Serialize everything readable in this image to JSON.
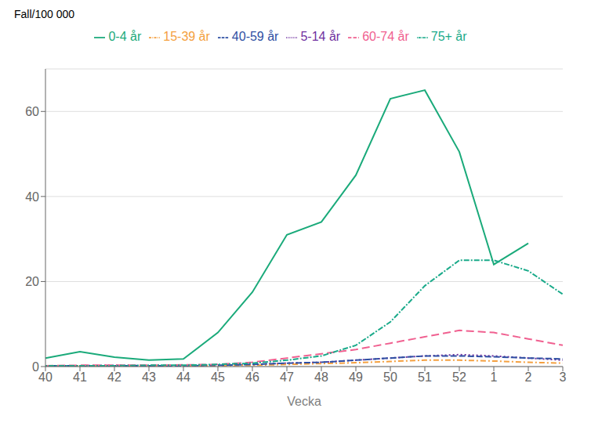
{
  "chart_data": {
    "type": "line",
    "categories": [
      40,
      41,
      42,
      43,
      44,
      45,
      46,
      47,
      48,
      49,
      50,
      51,
      52,
      1,
      2,
      3
    ],
    "series": [
      {
        "name": "0-4 år",
        "color": "#1aaa7a",
        "line_style": "solid",
        "values": [
          2.0,
          3.5,
          2.2,
          1.5,
          1.8,
          8.0,
          17.5,
          31.0,
          34.0,
          45.0,
          63.0,
          65.0,
          50.5,
          24.0,
          29.0,
          null
        ]
      },
      {
        "name": "5-14 år",
        "color": "#7030a0",
        "line_style": "dotted",
        "values": [
          0.2,
          0.2,
          0.3,
          0.2,
          0.2,
          0.3,
          0.5,
          0.8,
          1.0,
          1.5,
          2.0,
          2.5,
          2.8,
          2.5,
          2.0,
          1.5
        ]
      },
      {
        "name": "15-39 år",
        "color": "#f4a040",
        "line_style": "dashdot",
        "values": [
          0.1,
          0.1,
          0.1,
          0.1,
          0.1,
          0.2,
          0.3,
          0.5,
          0.7,
          0.9,
          1.2,
          1.5,
          1.5,
          1.3,
          1.0,
          0.8
        ]
      },
      {
        "name": "40-59 år",
        "color": "#2e4fa3",
        "line_style": "dashed",
        "values": [
          0.2,
          0.2,
          0.2,
          0.2,
          0.2,
          0.3,
          0.5,
          0.8,
          1.0,
          1.5,
          2.0,
          2.5,
          2.5,
          2.3,
          2.0,
          1.8
        ]
      },
      {
        "name": "60-74 år",
        "color": "#f06090",
        "line_style": "longdash",
        "values": [
          0.2,
          0.3,
          0.3,
          0.3,
          0.4,
          0.5,
          1.0,
          2.0,
          3.0,
          4.0,
          5.5,
          7.0,
          8.5,
          8.0,
          6.5,
          5.0
        ]
      },
      {
        "name": "75+ år",
        "color": "#1aaa8a",
        "line_style": "dotdash",
        "values": [
          0.2,
          0.2,
          0.2,
          0.3,
          0.3,
          0.5,
          0.8,
          1.5,
          2.5,
          5.0,
          10.5,
          19.0,
          25.0,
          25.0,
          22.5,
          17.0
        ]
      }
    ],
    "xlabel": "Vecka",
    "ylabel": "Fall/100 000",
    "ylim": [
      0,
      70
    ],
    "yticks": [
      0,
      20,
      40,
      60
    ],
    "grid": true,
    "legend": "top"
  }
}
